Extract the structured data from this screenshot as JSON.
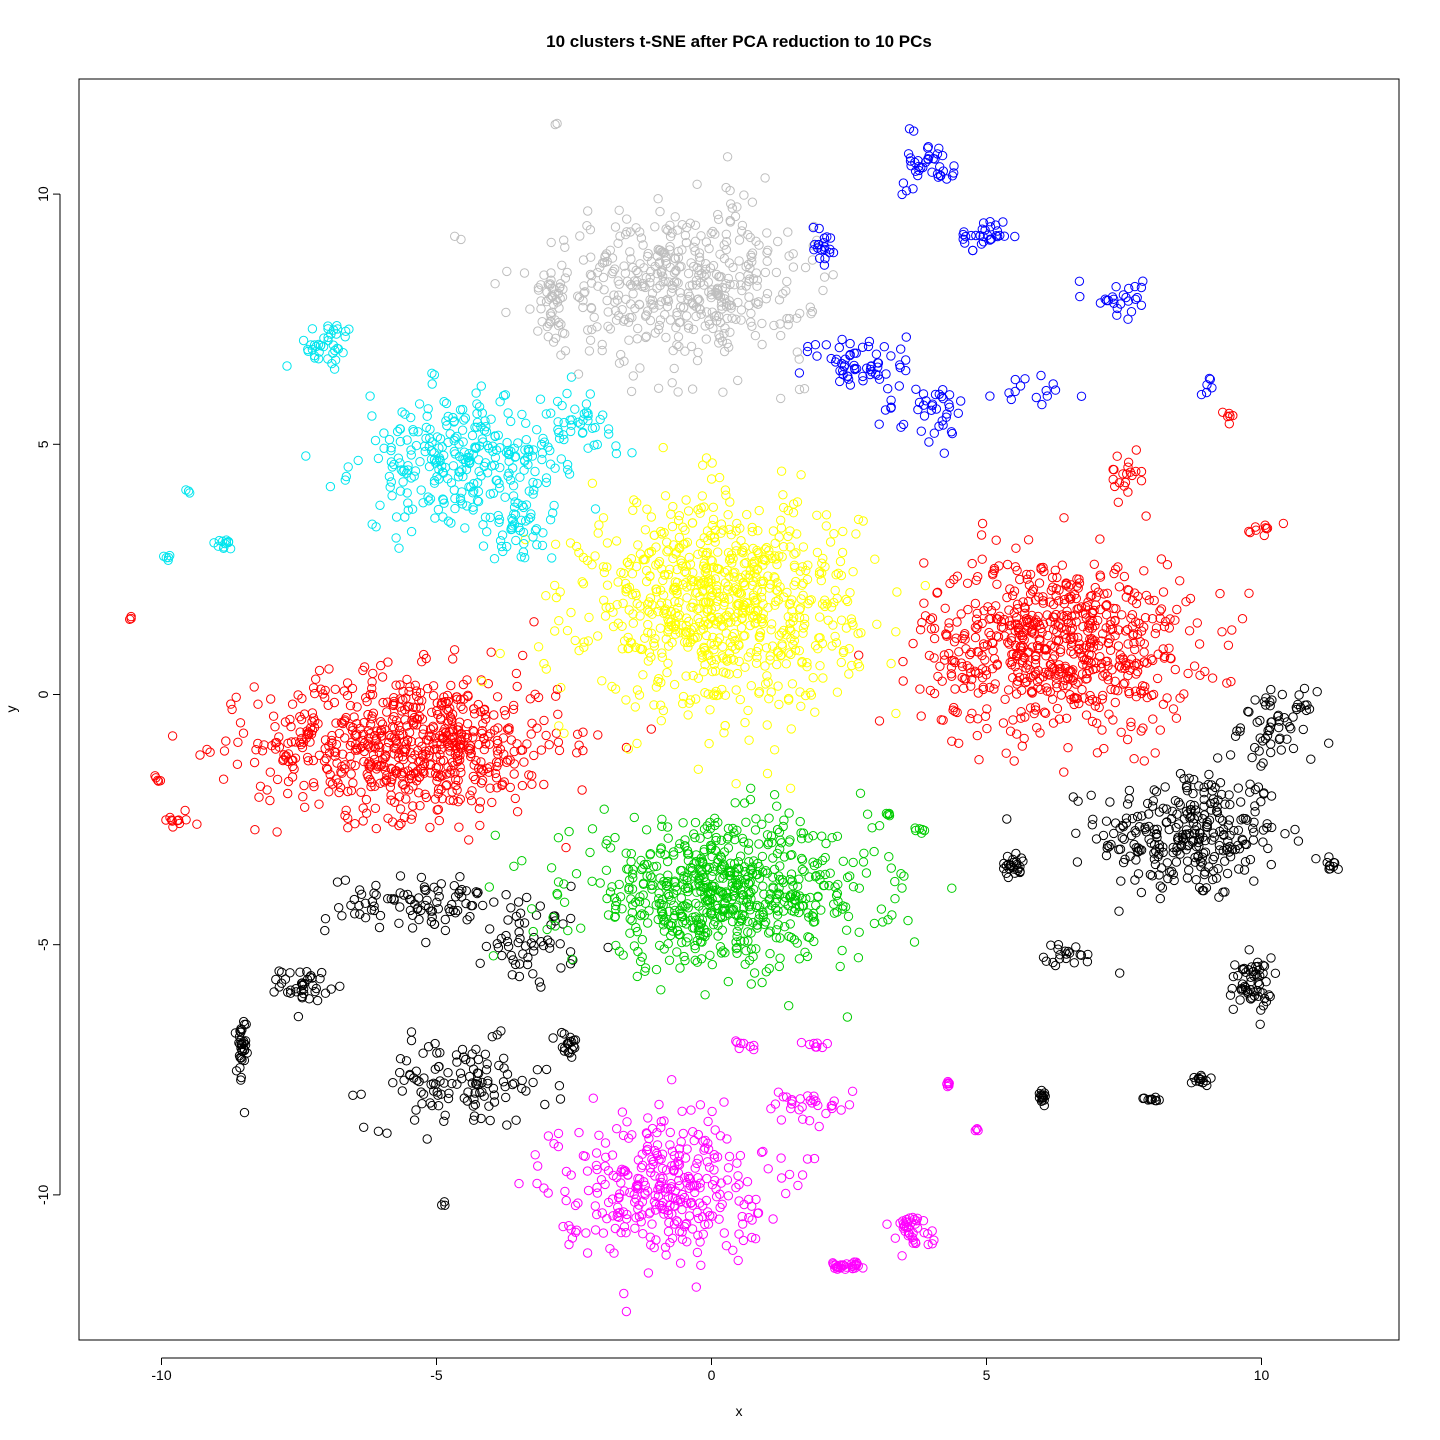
{
  "chart_data": {
    "type": "scatter",
    "title": "10 clusters t-SNE after PCA reduction to 10 PCs",
    "xlabel": "x",
    "ylabel": "y",
    "xlim": [
      -11.5,
      12.5
    ],
    "ylim": [
      -12.9,
      12.3
    ],
    "x_ticks": [
      -10,
      -5,
      0,
      5,
      10
    ],
    "y_ticks": [
      -10,
      -5,
      0,
      5,
      10
    ],
    "x_tick_labels": [
      "-10",
      "-5",
      "0",
      "5",
      "10"
    ],
    "y_tick_labels": [
      "-10",
      "-5",
      "0",
      "5",
      "10"
    ],
    "legend": "none",
    "grid": false,
    "marker": "open circle",
    "series": [
      {
        "color": "#000000",
        "blobs": [
          [
            8.7,
            -2.8,
            1.5,
            1.2,
            300
          ],
          [
            5.5,
            -3.4,
            0.25,
            0.2,
            25
          ],
          [
            6.5,
            -5.2,
            0.4,
            0.2,
            20
          ],
          [
            9.8,
            -5.8,
            0.35,
            0.5,
            60
          ],
          [
            10.3,
            -0.6,
            0.6,
            0.6,
            60
          ],
          [
            11.3,
            -3.4,
            0.2,
            0.15,
            10
          ],
          [
            -5.2,
            -4.2,
            1.6,
            0.5,
            100
          ],
          [
            -3.2,
            -5.0,
            0.8,
            0.7,
            50
          ],
          [
            -7.4,
            -5.8,
            0.4,
            0.3,
            40
          ],
          [
            -8.55,
            -7.2,
            0.08,
            0.7,
            35
          ],
          [
            -4.6,
            -7.8,
            1.5,
            0.8,
            120
          ],
          [
            -2.6,
            -7.0,
            0.2,
            0.25,
            20
          ],
          [
            6.0,
            -8.0,
            0.1,
            0.15,
            15
          ],
          [
            8.0,
            -8.1,
            0.15,
            0.05,
            10
          ],
          [
            8.9,
            -7.7,
            0.15,
            0.1,
            15
          ],
          [
            -4.8,
            -10.2,
            0.1,
            0.1,
            3
          ]
        ]
      },
      {
        "color": "#ff0000",
        "blobs": [
          [
            -5.5,
            -1.0,
            2.5,
            1.3,
            700
          ],
          [
            -9.6,
            -2.5,
            0.3,
            0.1,
            10
          ],
          [
            -10.55,
            1.55,
            0.05,
            0.05,
            3
          ],
          [
            -10.1,
            -1.7,
            0.1,
            0.1,
            5
          ],
          [
            6.3,
            1.0,
            2.2,
            1.6,
            700
          ],
          [
            9.4,
            5.6,
            0.06,
            0.15,
            6
          ],
          [
            10.0,
            3.3,
            0.2,
            0.1,
            10
          ],
          [
            7.5,
            4.4,
            0.3,
            0.4,
            20
          ]
        ]
      },
      {
        "color": "#00cc00",
        "blobs": [
          [
            0.2,
            -4.0,
            2.5,
            1.3,
            700
          ],
          [
            3.2,
            -2.4,
            0.1,
            0.05,
            5
          ],
          [
            3.8,
            -2.7,
            0.1,
            0.05,
            6
          ]
        ]
      },
      {
        "color": "#ffff00",
        "blobs": [
          [
            0.2,
            1.8,
            2.2,
            1.9,
            800
          ]
        ]
      },
      {
        "color": "#00e5ee",
        "blobs": [
          [
            -4.5,
            4.6,
            1.7,
            1.2,
            300
          ],
          [
            -7.0,
            7.0,
            0.5,
            0.4,
            40
          ],
          [
            -8.9,
            3.0,
            0.15,
            0.1,
            12
          ],
          [
            -9.9,
            2.75,
            0.1,
            0.05,
            5
          ],
          [
            -9.5,
            4.05,
            0.05,
            0.05,
            3
          ],
          [
            -2.5,
            5.5,
            0.6,
            0.5,
            40
          ],
          [
            -3.5,
            3.3,
            0.6,
            0.5,
            40
          ]
        ]
      },
      {
        "color": "#bebebe",
        "blobs": [
          [
            -0.5,
            8.2,
            2.0,
            1.4,
            450
          ],
          [
            -2.9,
            7.8,
            0.25,
            0.8,
            50
          ],
          [
            -2.8,
            11.4,
            0.05,
            0.05,
            2
          ],
          [
            -4.6,
            9.1,
            0.05,
            0.05,
            2
          ]
        ]
      },
      {
        "color": "#0000ff",
        "blobs": [
          [
            4.0,
            10.6,
            0.4,
            0.55,
            40
          ],
          [
            5.0,
            9.2,
            0.6,
            0.3,
            30
          ],
          [
            7.4,
            7.9,
            0.4,
            0.3,
            25
          ],
          [
            2.8,
            6.6,
            0.8,
            0.6,
            60
          ],
          [
            4.0,
            5.6,
            0.8,
            0.6,
            40
          ],
          [
            2.0,
            9.0,
            0.2,
            0.4,
            20
          ],
          [
            6.0,
            6.0,
            0.6,
            0.3,
            15
          ],
          [
            9.0,
            6.2,
            0.2,
            0.2,
            6
          ]
        ]
      },
      {
        "color": "#ff00ff",
        "blobs": [
          [
            -0.9,
            -9.8,
            1.7,
            1.3,
            350
          ],
          [
            2.4,
            -11.4,
            0.3,
            0.08,
            35
          ],
          [
            3.6,
            -10.7,
            0.35,
            0.3,
            40
          ],
          [
            1.8,
            -8.2,
            0.8,
            0.4,
            30
          ],
          [
            4.3,
            -7.8,
            0.08,
            0.08,
            8
          ],
          [
            0.6,
            -7.0,
            0.2,
            0.1,
            8
          ],
          [
            1.9,
            -7.0,
            0.2,
            0.1,
            8
          ],
          [
            4.8,
            -8.7,
            0.08,
            0.05,
            4
          ]
        ]
      }
    ]
  }
}
